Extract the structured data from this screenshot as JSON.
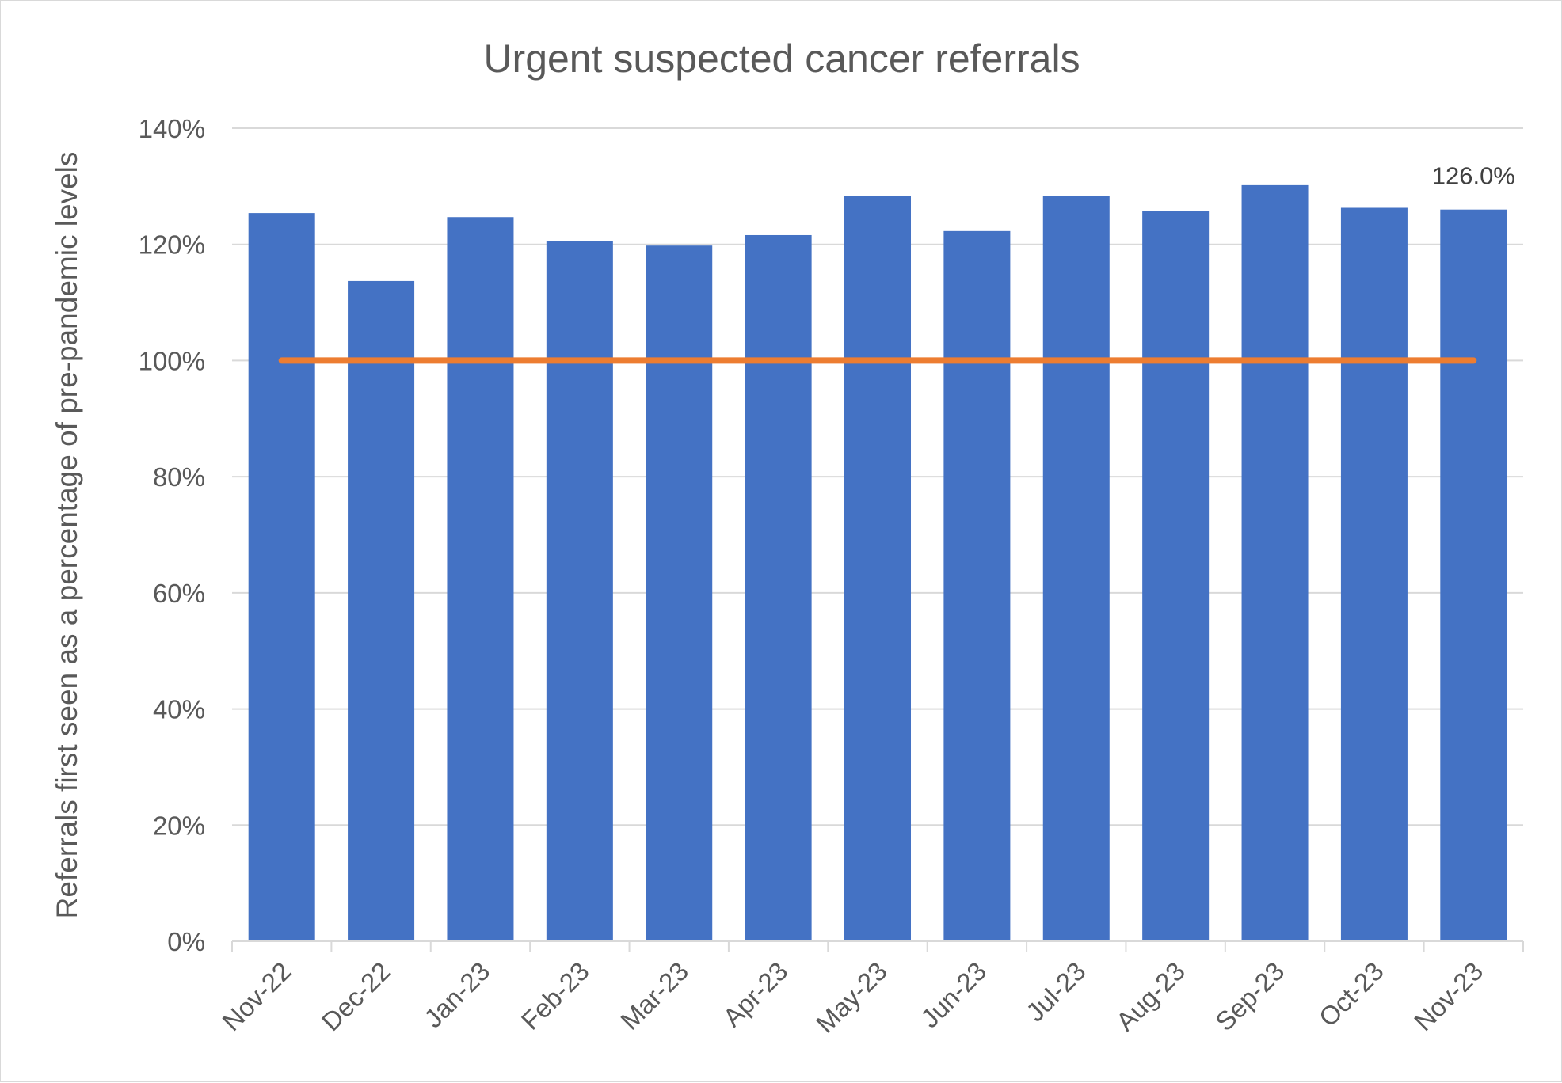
{
  "chart_data": {
    "type": "bar",
    "title": "Urgent suspected cancer referrals",
    "ylabel": "Referrals first seen as a percentage of pre-pandemic levels",
    "xlabel": "",
    "categories": [
      "Nov-22",
      "Dec-22",
      "Jan-23",
      "Feb-23",
      "Mar-23",
      "Apr-23",
      "May-23",
      "Jun-23",
      "Jul-23",
      "Aug-23",
      "Sep-23",
      "Oct-23",
      "Nov-23"
    ],
    "series": [
      {
        "type": "bar",
        "color": "#4472c4",
        "values": [
          125.4,
          113.7,
          124.7,
          120.6,
          119.8,
          121.6,
          128.4,
          122.3,
          128.3,
          125.7,
          130.2,
          126.3,
          126.0
        ]
      },
      {
        "type": "line",
        "color": "#ed7d31",
        "values": [
          100,
          100,
          100,
          100,
          100,
          100,
          100,
          100,
          100,
          100,
          100,
          100,
          100
        ]
      }
    ],
    "ylim": [
      0,
      140
    ],
    "yticks": [
      0,
      20,
      40,
      60,
      80,
      100,
      120,
      140
    ],
    "ytick_labels": [
      "0%",
      "20%",
      "40%",
      "60%",
      "80%",
      "100%",
      "120%",
      "140%"
    ],
    "data_labels": [
      {
        "category": "Nov-23",
        "text": "126.0%"
      }
    ],
    "grid": true,
    "legend": "none"
  }
}
